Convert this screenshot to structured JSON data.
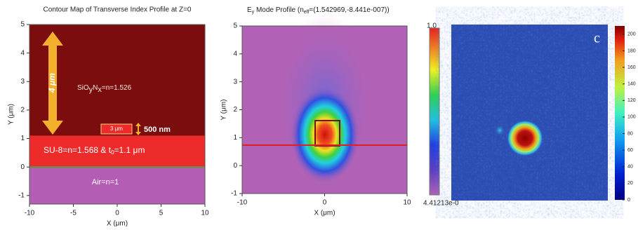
{
  "chart_data": [
    {
      "type": "layers",
      "title": "Contour Map of Transverse Index Profile at Z=0",
      "x_label": "X (μm)",
      "y_label": "Y (μm)",
      "xlim": [
        -10,
        10
      ],
      "ylim": [
        -1.3,
        5
      ],
      "xticks": [
        -10,
        -5,
        0,
        5,
        10
      ],
      "yticks": [
        -1,
        0,
        1,
        2,
        3,
        4,
        5
      ],
      "layers": [
        {
          "label_parts": [
            "SiO",
            "y",
            "N",
            "x",
            "=n=1.526"
          ],
          "y_range": [
            1.1,
            5
          ],
          "color": "#7b0d0f"
        },
        {
          "label_parts": [
            "SU-8=n=1.568  & t",
            "0",
            "=1.1 μm"
          ],
          "y_range": [
            0,
            1.1
          ],
          "color": "#ee2b2b"
        },
        {
          "label_parts": [
            "Air=n=1"
          ],
          "y_range": [
            -1.3,
            0
          ],
          "color": "#b35db4"
        }
      ],
      "annotations": [
        "4 μm",
        "3 μm",
        "500 nm"
      ]
    },
    {
      "type": "mode",
      "title_parts": [
        "E",
        "y",
        " Mode Profile (n",
        "eff",
        "=(1.542969,-8.441e-007))"
      ],
      "x_label": "X (μm)",
      "y_label": "Y (μm)",
      "xlim": [
        -10,
        10
      ],
      "ylim": [
        -1,
        5
      ],
      "xticks": [
        -10,
        0,
        10
      ],
      "yticks": [
        -1,
        0,
        1,
        2,
        3,
        4,
        5
      ],
      "colorbar_labels": [
        "1.0",
        "4.41213e-0"
      ]
    },
    {
      "type": "image",
      "panel_label": "c",
      "clim": [
        0,
        210
      ],
      "cticks": [
        0,
        20,
        40,
        60,
        80,
        100,
        120,
        140,
        160,
        180,
        200
      ]
    }
  ]
}
